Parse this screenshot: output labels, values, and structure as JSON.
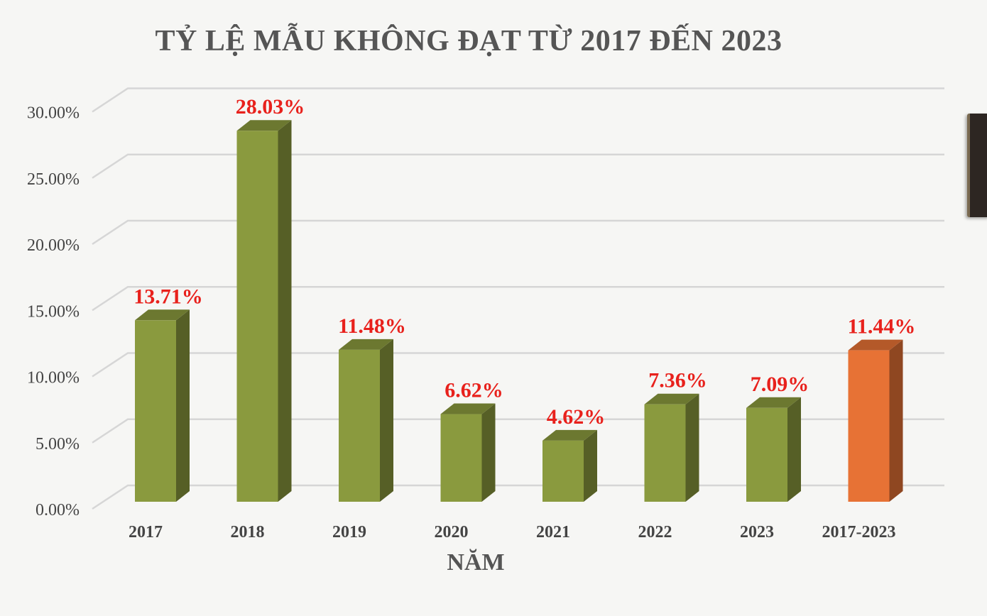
{
  "chart_data": {
    "type": "bar",
    "title": "TỶ LỆ MẪU KHÔNG ĐẠT TỪ 2017 ĐẾN 2023",
    "xlabel": "NĂM",
    "ylabel": "",
    "categories": [
      "2017",
      "2018",
      "2019",
      "2020",
      "2021",
      "2022",
      "2023",
      "2017-2023"
    ],
    "values": [
      13.71,
      28.03,
      11.48,
      6.62,
      4.62,
      7.36,
      7.09,
      11.44
    ],
    "data_labels": [
      "13.71%",
      "28.03%",
      "11.48%",
      "6.62%",
      "4.62%",
      "7.36%",
      "7.09%",
      "11.44%"
    ],
    "ylim": [
      0,
      30
    ],
    "yticks": [
      0,
      5,
      10,
      15,
      20,
      25,
      30
    ],
    "ytick_labels": [
      "0.00%",
      "5.00%",
      "10.00%",
      "15.00%",
      "20.00%",
      "25.00%",
      "30.00%"
    ],
    "grid": true,
    "style": "3d-column",
    "legend": "none",
    "colors": {
      "bar": "#8a9a3e",
      "bar_highlight": "#e77235",
      "data_label": "#e8211c",
      "grid": "#d6d6d6",
      "text": "#444444"
    },
    "highlight_category": "2017-2023"
  }
}
